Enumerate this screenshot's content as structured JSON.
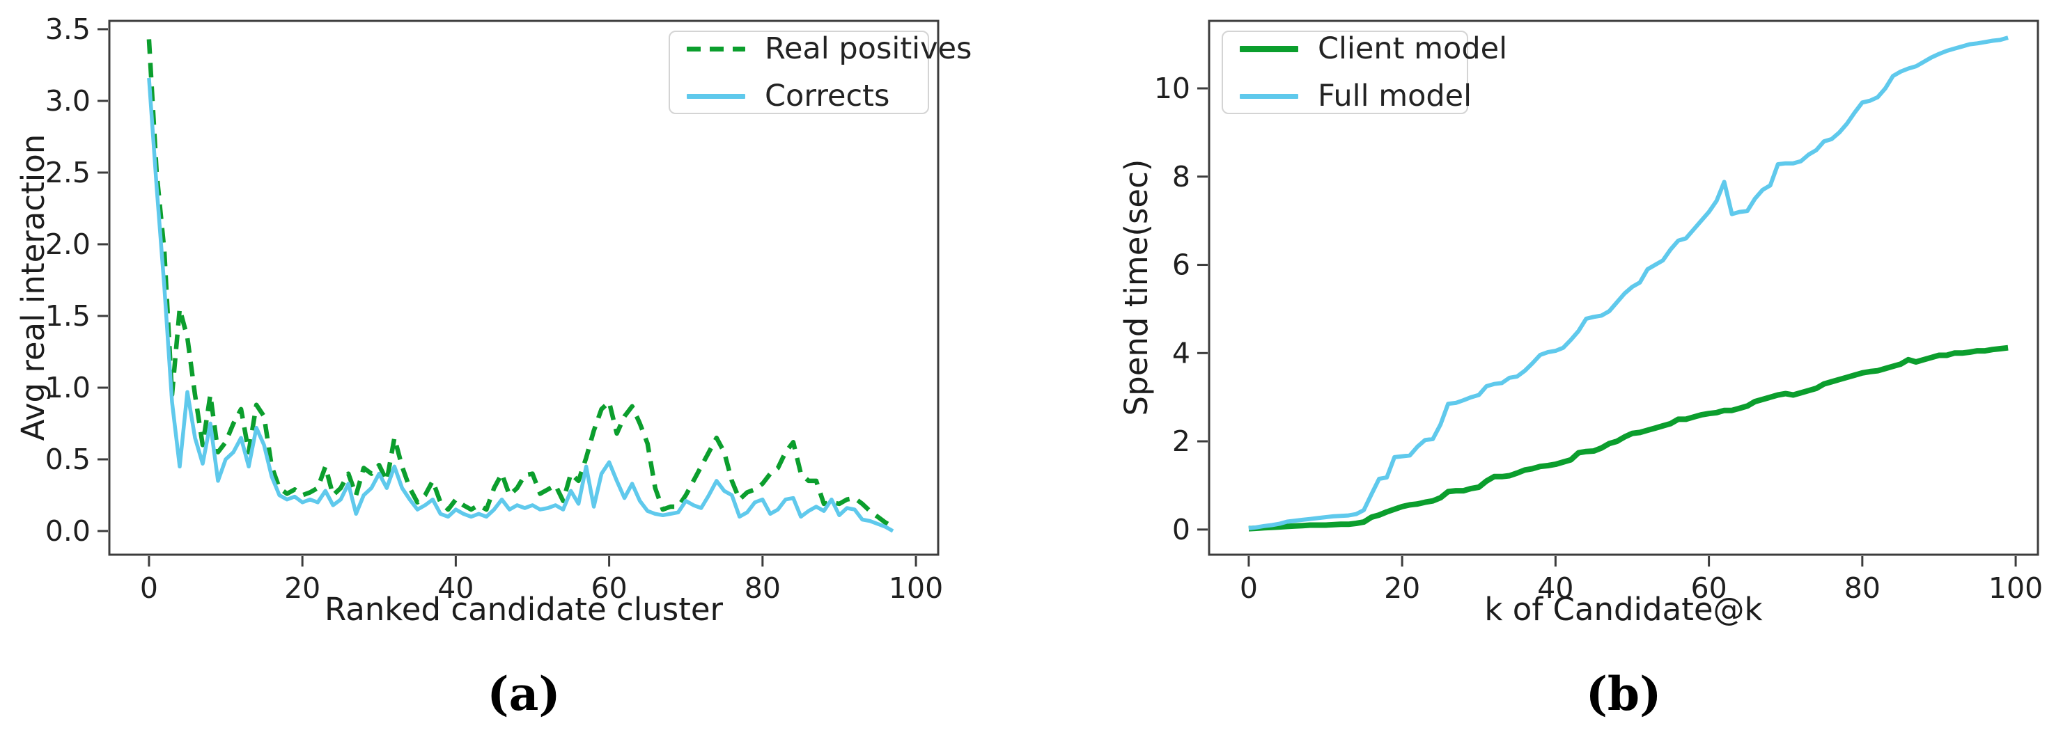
{
  "colors": {
    "green": "#0b9e2d",
    "skyblue": "#5fc9ec",
    "axis": "#3c3c3c",
    "text": "#1f1f1f",
    "legend_border": "#d4d4d4",
    "background": "#ffffff"
  },
  "chart_data": [
    {
      "type": "line",
      "caption": "(a)",
      "xlabel": "Ranked candidate cluster",
      "ylabel": "Avg real interaction",
      "xticks": [
        0,
        20,
        40,
        60,
        80,
        100
      ],
      "ytick_labels": [
        "0.0",
        "0.5",
        "1.0",
        "1.5",
        "2.0",
        "2.5",
        "3.0",
        "3.5"
      ],
      "xlim": [
        -5.17,
        102.9
      ],
      "ylim": [
        -0.165,
        3.558
      ],
      "grid": false,
      "legend_position": "top-right",
      "x_start": 0,
      "x_step": 1,
      "series": [
        {
          "name": "Real positives",
          "color": "green",
          "dashed": true,
          "values": [
            3.43,
            2.5,
            1.95,
            0.95,
            1.55,
            1.35,
            0.95,
            0.6,
            0.95,
            0.55,
            0.62,
            0.75,
            0.85,
            0.55,
            0.88,
            0.8,
            0.45,
            0.3,
            0.26,
            0.29,
            0.25,
            0.27,
            0.3,
            0.45,
            0.25,
            0.3,
            0.4,
            0.25,
            0.44,
            0.4,
            0.46,
            0.35,
            0.65,
            0.45,
            0.3,
            0.2,
            0.25,
            0.35,
            0.2,
            0.15,
            0.22,
            0.18,
            0.15,
            0.18,
            0.15,
            0.3,
            0.4,
            0.25,
            0.3,
            0.39,
            0.4,
            0.26,
            0.29,
            0.32,
            0.21,
            0.4,
            0.35,
            0.51,
            0.7,
            0.85,
            0.9,
            0.68,
            0.8,
            0.87,
            0.75,
            0.61,
            0.3,
            0.15,
            0.17,
            0.17,
            0.25,
            0.35,
            0.45,
            0.55,
            0.65,
            0.55,
            0.35,
            0.22,
            0.27,
            0.29,
            0.33,
            0.4,
            0.44,
            0.55,
            0.62,
            0.4,
            0.35,
            0.35,
            0.19,
            0.2,
            0.19,
            0.22,
            0.23,
            0.19,
            0.14,
            0.1,
            0.06,
            0.03
          ]
        },
        {
          "name": "Corrects",
          "color": "skyblue",
          "dashed": false,
          "values": [
            3.16,
            2.4,
            1.7,
            0.9,
            0.45,
            0.97,
            0.65,
            0.47,
            0.75,
            0.35,
            0.5,
            0.55,
            0.65,
            0.45,
            0.72,
            0.6,
            0.38,
            0.25,
            0.22,
            0.24,
            0.2,
            0.22,
            0.2,
            0.28,
            0.18,
            0.22,
            0.33,
            0.12,
            0.25,
            0.3,
            0.4,
            0.3,
            0.45,
            0.3,
            0.22,
            0.15,
            0.18,
            0.22,
            0.12,
            0.1,
            0.15,
            0.12,
            0.1,
            0.12,
            0.1,
            0.15,
            0.22,
            0.15,
            0.18,
            0.16,
            0.18,
            0.15,
            0.16,
            0.18,
            0.15,
            0.28,
            0.19,
            0.45,
            0.17,
            0.4,
            0.48,
            0.35,
            0.23,
            0.33,
            0.21,
            0.14,
            0.12,
            0.11,
            0.12,
            0.13,
            0.21,
            0.18,
            0.16,
            0.25,
            0.35,
            0.28,
            0.25,
            0.1,
            0.13,
            0.2,
            0.22,
            0.12,
            0.15,
            0.22,
            0.23,
            0.1,
            0.14,
            0.17,
            0.14,
            0.22,
            0.11,
            0.16,
            0.15,
            0.08,
            0.07,
            0.05,
            0.03,
            0.0
          ]
        }
      ]
    },
    {
      "type": "line",
      "caption": "(b)",
      "xlabel": "k of Candidate@k",
      "ylabel": "Spend time(sec)",
      "xticks": [
        0,
        20,
        40,
        60,
        80,
        100
      ],
      "ytick_labels": [
        "0",
        "2",
        "4",
        "6",
        "8",
        "10"
      ],
      "xlim": [
        -5.17,
        102.9
      ],
      "ylim": [
        -0.57,
        11.53
      ],
      "grid": false,
      "legend_position": "top-left",
      "x_start": 0,
      "x_step": 1,
      "series": [
        {
          "name": "Client model",
          "color": "green",
          "dashed": false,
          "values": [
            0.02,
            0.03,
            0.04,
            0.05,
            0.06,
            0.07,
            0.08,
            0.09,
            0.1,
            0.1,
            0.1,
            0.11,
            0.12,
            0.12,
            0.14,
            0.17,
            0.28,
            0.33,
            0.4,
            0.46,
            0.52,
            0.56,
            0.58,
            0.62,
            0.65,
            0.72,
            0.86,
            0.88,
            0.88,
            0.93,
            0.96,
            1.1,
            1.2,
            1.2,
            1.22,
            1.28,
            1.35,
            1.38,
            1.43,
            1.45,
            1.48,
            1.53,
            1.58,
            1.74,
            1.77,
            1.78,
            1.85,
            1.95,
            2.0,
            2.1,
            2.18,
            2.2,
            2.25,
            2.3,
            2.35,
            2.4,
            2.5,
            2.5,
            2.55,
            2.6,
            2.63,
            2.65,
            2.7,
            2.7,
            2.75,
            2.8,
            2.9,
            2.95,
            3.0,
            3.05,
            3.08,
            3.05,
            3.1,
            3.15,
            3.2,
            3.3,
            3.35,
            3.4,
            3.45,
            3.5,
            3.55,
            3.58,
            3.6,
            3.65,
            3.7,
            3.75,
            3.85,
            3.8,
            3.85,
            3.9,
            3.95,
            3.95,
            4.0,
            4.0,
            4.02,
            4.05,
            4.05,
            4.08,
            4.1,
            4.12
          ]
        },
        {
          "name": "Full model",
          "color": "skyblue",
          "dashed": false,
          "values": [
            0.03,
            0.05,
            0.08,
            0.1,
            0.13,
            0.18,
            0.2,
            0.22,
            0.24,
            0.26,
            0.28,
            0.3,
            0.31,
            0.32,
            0.35,
            0.44,
            0.8,
            1.15,
            1.18,
            1.64,
            1.66,
            1.68,
            1.88,
            2.03,
            2.05,
            2.38,
            2.85,
            2.87,
            2.93,
            3.0,
            3.05,
            3.25,
            3.3,
            3.32,
            3.44,
            3.47,
            3.6,
            3.77,
            3.96,
            4.02,
            4.05,
            4.12,
            4.3,
            4.5,
            4.78,
            4.82,
            4.85,
            4.95,
            5.15,
            5.35,
            5.5,
            5.6,
            5.9,
            6.0,
            6.1,
            6.35,
            6.55,
            6.6,
            6.8,
            7.0,
            7.2,
            7.45,
            7.88,
            7.15,
            7.2,
            7.22,
            7.5,
            7.7,
            7.8,
            8.28,
            8.3,
            8.3,
            8.35,
            8.5,
            8.6,
            8.8,
            8.85,
            9.0,
            9.2,
            9.45,
            9.68,
            9.72,
            9.8,
            10.0,
            10.28,
            10.38,
            10.45,
            10.5,
            10.6,
            10.7,
            10.78,
            10.85,
            10.9,
            10.95,
            11.0,
            11.02,
            11.05,
            11.08,
            11.1,
            11.15
          ]
        }
      ]
    }
  ]
}
